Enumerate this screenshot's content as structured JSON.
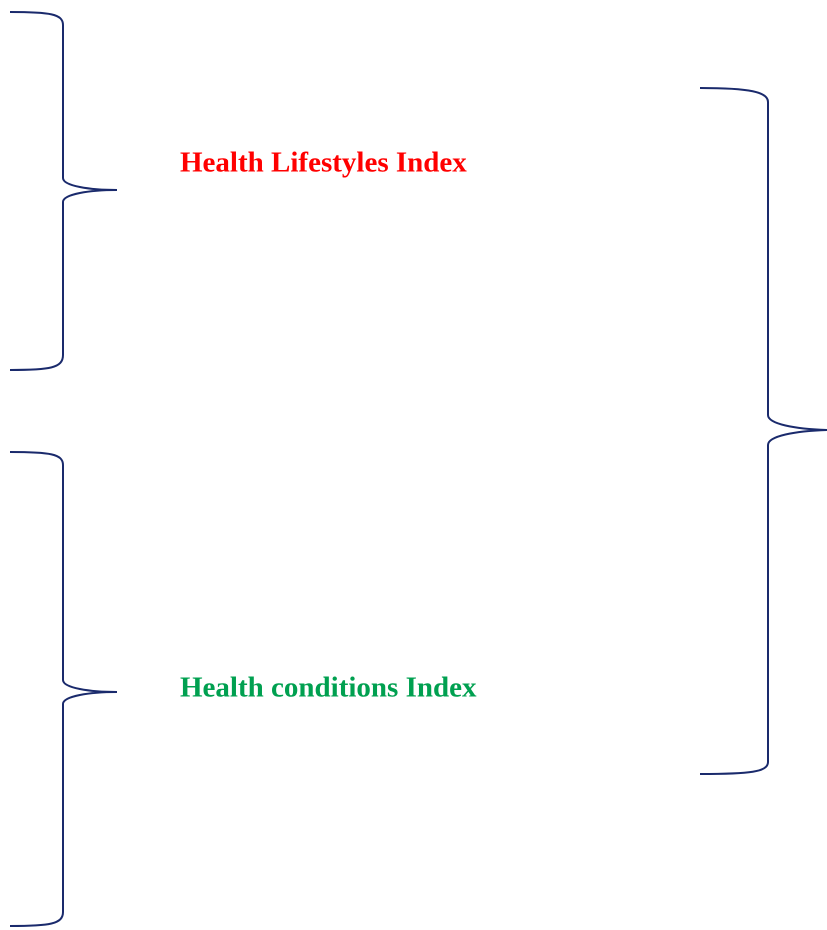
{
  "labels": [
    {
      "text": "Health Lifestyles Index",
      "color": "#ff0000"
    },
    {
      "text": "Health conditions Index",
      "color": "#00a050"
    }
  ]
}
